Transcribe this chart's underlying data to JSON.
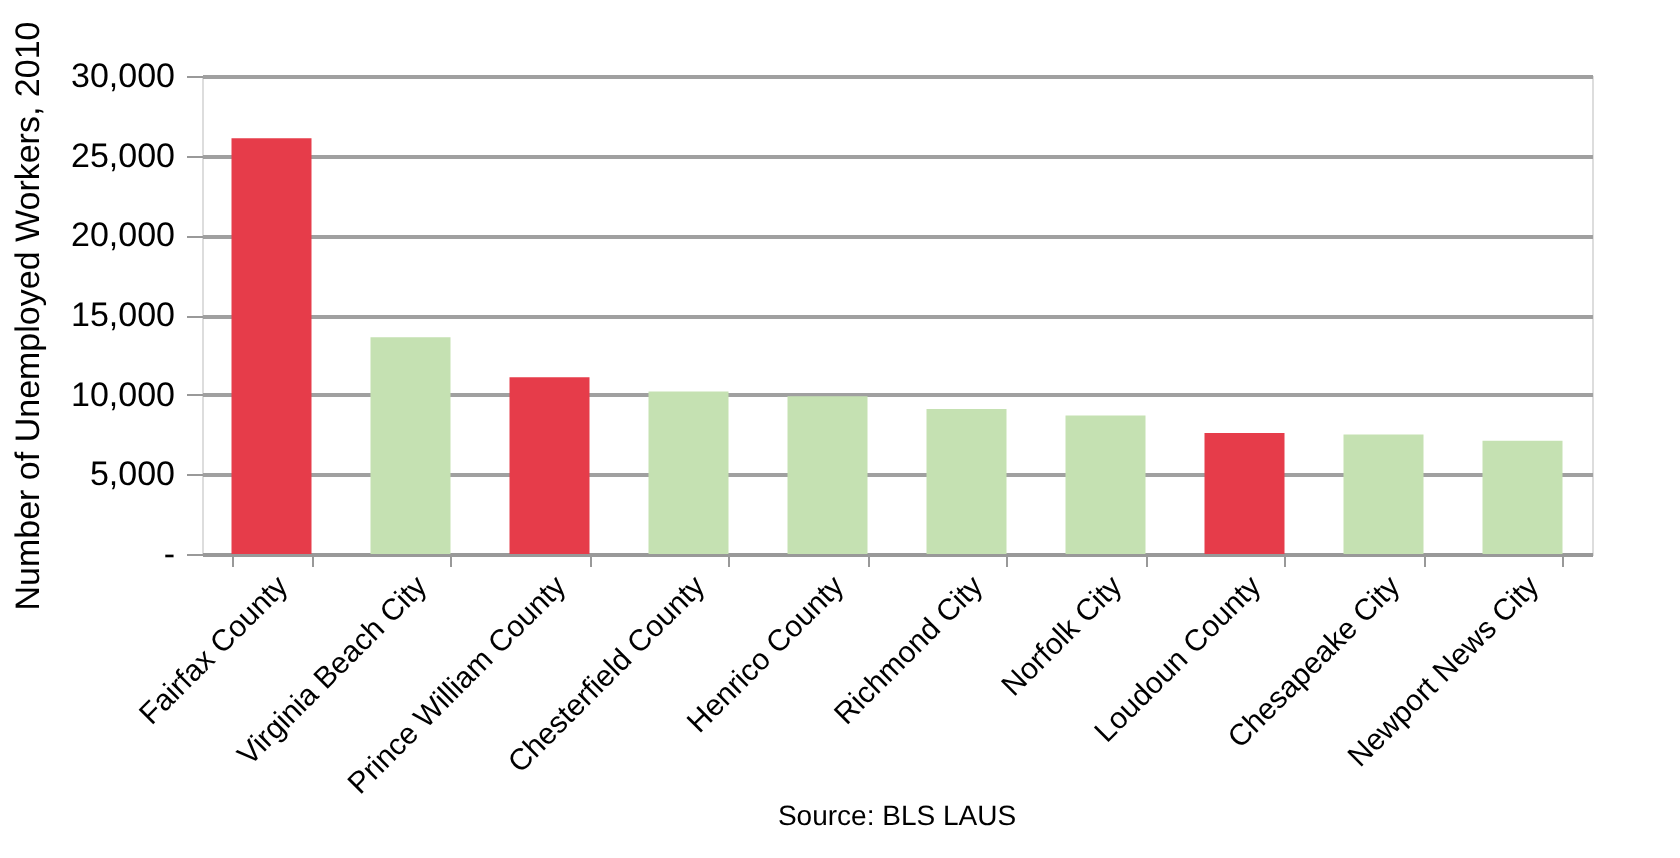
{
  "chart_data": {
    "type": "bar",
    "ylabel": "Number of Unemployed Workers, 2010",
    "categories": [
      "Fairfax County",
      "Virginia Beach City",
      "Prince William County",
      "Chesterfield County",
      "Henrico County",
      "Richmond City",
      "Norfolk City",
      "Loudoun County",
      "Chesapeake City",
      "Newport News City"
    ],
    "values": [
      26100,
      13600,
      11100,
      10200,
      9900,
      9100,
      8700,
      7600,
      7500,
      7100
    ],
    "colors": [
      "#e63c4a",
      "#c5e1b2",
      "#e63c4a",
      "#c5e1b2",
      "#c5e1b2",
      "#c5e1b2",
      "#c5e1b2",
      "#e63c4a",
      "#c5e1b2",
      "#c5e1b2"
    ],
    "ylim": [
      0,
      30000
    ],
    "yticks": [
      {
        "value": 0,
        "label": "-"
      },
      {
        "value": 5000,
        "label": "5,000"
      },
      {
        "value": 10000,
        "label": "10,000"
      },
      {
        "value": 15000,
        "label": "15,000"
      },
      {
        "value": 20000,
        "label": "20,000"
      },
      {
        "value": 25000,
        "label": "25,000"
      },
      {
        "value": 30000,
        "label": "30,000"
      }
    ],
    "grid": "y",
    "annotations": [
      "Source: BLS LAUS"
    ]
  }
}
